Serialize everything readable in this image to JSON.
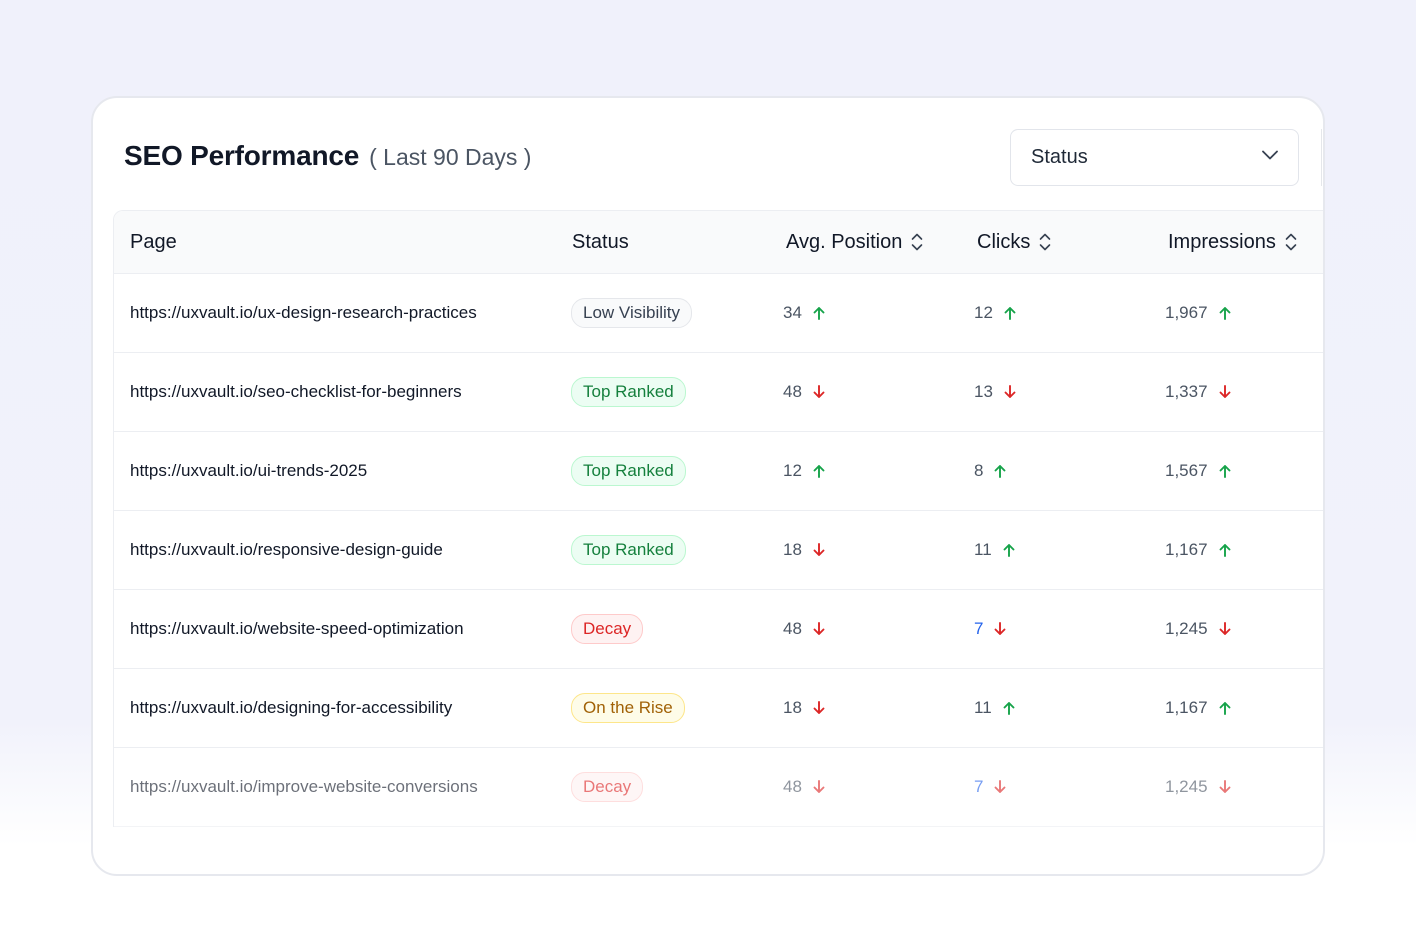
{
  "header": {
    "title": "SEO Performance",
    "subtitle": "( Last 90 Days )"
  },
  "filter": {
    "label": "Status"
  },
  "table": {
    "columns": {
      "page": "Page",
      "status": "Status",
      "position": "Avg. Position",
      "clicks": "Clicks",
      "impressions": "Impressions"
    },
    "rows": [
      {
        "page": "https://uxvault.io/ux-design-research-practices",
        "status": "Low Visibility",
        "position": "34",
        "position_trend": "up",
        "clicks": "12",
        "clicks_trend": "up",
        "impressions": "1,967",
        "impressions_trend": "up"
      },
      {
        "page": "https://uxvault.io/seo-checklist-for-beginners",
        "status": "Top Ranked",
        "position": "48",
        "position_trend": "down",
        "clicks": "13",
        "clicks_trend": "down",
        "impressions": "1,337",
        "impressions_trend": "down"
      },
      {
        "page": "https://uxvault.io/ui-trends-2025",
        "status": "Top Ranked",
        "position": "12",
        "position_trend": "up",
        "clicks": "8",
        "clicks_trend": "up",
        "impressions": "1,567",
        "impressions_trend": "up"
      },
      {
        "page": "https://uxvault.io/responsive-design-guide",
        "status": "Top Ranked",
        "position": "18",
        "position_trend": "down",
        "clicks": "11",
        "clicks_trend": "up",
        "impressions": "1,167",
        "impressions_trend": "up"
      },
      {
        "page": "https://uxvault.io/website-speed-optimization",
        "status": "Decay",
        "position": "48",
        "position_trend": "down",
        "clicks": "7",
        "clicks_trend": "down",
        "impressions": "1,245",
        "impressions_trend": "down"
      },
      {
        "page": "https://uxvault.io/designing-for-accessibility",
        "status": "On the Rise",
        "position": "18",
        "position_trend": "down",
        "clicks": "11",
        "clicks_trend": "up",
        "impressions": "1,167",
        "impressions_trend": "up"
      },
      {
        "page": "https://uxvault.io/improve-website-conversions",
        "status": "Decay",
        "position": "48",
        "position_trend": "down",
        "clicks": "7",
        "clicks_trend": "down",
        "impressions": "1,245",
        "impressions_trend": "down"
      }
    ]
  },
  "colors": {
    "up_arrow": "#16a34a",
    "down_arrow": "#dc2626",
    "highlight_value": "#2563eb",
    "badge_low_visibility": {
      "text": "#374151",
      "bg": "#f9fafb",
      "border": "#e5e7eb"
    },
    "badge_top_ranked": {
      "text": "#15803d",
      "bg": "#ecfdf3",
      "border": "#bbf7d0"
    },
    "badge_decay": {
      "text": "#dc2626",
      "bg": "#fef2f2",
      "border": "#fecaca"
    },
    "badge_on_the_rise": {
      "text": "#a16207",
      "bg": "#fefce8",
      "border": "#fde68a"
    }
  }
}
